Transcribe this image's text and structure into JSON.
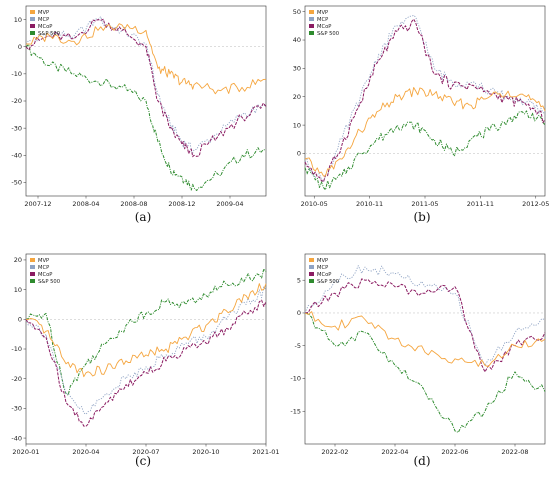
{
  "legend_entries": [
    "MVP",
    "MCP",
    "MCoP",
    "S&P 500"
  ],
  "series_colors": {
    "MVP": "#f5a640",
    "MCP": "#8fa3c4",
    "MCoP": "#8b1c62",
    "S&P 500": "#2e8b2e"
  },
  "chart_data": [
    {
      "type": "line",
      "caption": "(a)",
      "x": [
        "2007-11",
        "2008-01",
        "2008-03",
        "2008-05",
        "2008-07",
        "2008-09",
        "2008-10",
        "2008-11",
        "2008-12",
        "2009-01",
        "2009-03",
        "2009-05",
        "2009-07"
      ],
      "xticks": [
        "2007-12",
        "2008-04",
        "2008-08",
        "2008-12",
        "2009-04"
      ],
      "yticks": [
        10,
        0,
        -10,
        -20,
        -30,
        -40,
        -50
      ],
      "ylim": [
        -55,
        15
      ],
      "legend": "top-left",
      "series": [
        {
          "name": "MVP",
          "values": [
            1,
            4,
            2,
            6,
            8,
            6,
            -8,
            -10,
            -13,
            -14,
            -16,
            -15,
            -12
          ]
        },
        {
          "name": "MCP",
          "values": [
            1,
            5,
            4,
            10,
            6,
            1,
            -18,
            -28,
            -35,
            -38,
            -32,
            -25,
            -22
          ]
        },
        {
          "name": "MCoP",
          "values": [
            0,
            4,
            3,
            10,
            6,
            0,
            -20,
            -30,
            -36,
            -40,
            -33,
            -26,
            -22
          ]
        },
        {
          "name": "S&P 500",
          "values": [
            0,
            -7,
            -10,
            -13,
            -15,
            -20,
            -35,
            -45,
            -48,
            -52,
            -47,
            -40,
            -38
          ]
        }
      ]
    },
    {
      "type": "line",
      "caption": "(b)",
      "x": [
        "2010-04",
        "2010-06",
        "2010-08",
        "2010-10",
        "2010-12",
        "2011-02",
        "2011-04",
        "2011-06",
        "2011-08",
        "2011-10",
        "2011-12",
        "2012-02",
        "2012-04",
        "2012-06"
      ],
      "xticks": [
        "2010-05",
        "2010-11",
        "2011-05",
        "2011-11",
        "2012-05"
      ],
      "yticks": [
        50,
        40,
        30,
        20,
        10,
        0
      ],
      "ylim": [
        -15,
        52
      ],
      "legend": "top-left",
      "series": [
        {
          "name": "MVP",
          "values": [
            -2,
            -8,
            -2,
            8,
            15,
            20,
            22,
            21,
            18,
            17,
            20,
            22,
            20,
            15
          ]
        },
        {
          "name": "MCP",
          "values": [
            -3,
            -10,
            5,
            20,
            35,
            45,
            48,
            30,
            25,
            25,
            22,
            20,
            18,
            14
          ]
        },
        {
          "name": "MCoP",
          "values": [
            -3,
            -10,
            3,
            18,
            33,
            43,
            46,
            28,
            24,
            24,
            21,
            19,
            17,
            12
          ]
        },
        {
          "name": "S&P 500",
          "values": [
            -5,
            -12,
            -8,
            0,
            5,
            10,
            10,
            5,
            0,
            5,
            8,
            12,
            15,
            10
          ]
        }
      ]
    },
    {
      "type": "line",
      "caption": "(c)",
      "x": [
        "2020-01",
        "2020-02",
        "2020-03",
        "2020-04",
        "2020-05",
        "2020-06",
        "2020-07",
        "2020-08",
        "2020-09",
        "2020-10",
        "2020-11",
        "2020-12",
        "2021-01"
      ],
      "xticks": [
        "2020-01",
        "2020-04",
        "2020-07",
        "2020-10",
        "2021-01"
      ],
      "yticks": [
        20,
        10,
        0,
        -10,
        -20,
        -30,
        -40
      ],
      "ylim": [
        -42,
        22
      ],
      "legend": "top-left",
      "series": [
        {
          "name": "MVP",
          "values": [
            0,
            -4,
            -15,
            -18,
            -17,
            -14,
            -12,
            -10,
            -6,
            -2,
            3,
            8,
            12
          ]
        },
        {
          "name": "MCP",
          "values": [
            0,
            -5,
            -25,
            -32,
            -25,
            -20,
            -16,
            -12,
            -8,
            -6,
            0,
            5,
            10
          ]
        },
        {
          "name": "MCoP",
          "values": [
            0,
            -6,
            -28,
            -36,
            -28,
            -22,
            -18,
            -14,
            -10,
            -8,
            -3,
            2,
            6
          ]
        },
        {
          "name": "S&P 500",
          "values": [
            0,
            2,
            -25,
            -15,
            -8,
            -2,
            2,
            6,
            5,
            8,
            12,
            14,
            16
          ]
        }
      ]
    },
    {
      "type": "line",
      "caption": "(d)",
      "x": [
        "2022-01",
        "2022-02",
        "2022-03",
        "2022-04",
        "2022-05",
        "2022-06",
        "2022-07",
        "2022-08",
        "2022-09"
      ],
      "xticks": [
        "2022-02",
        "2022-04",
        "2022-06",
        "2022-08"
      ],
      "yticks": [
        5,
        0,
        -5,
        -10,
        -15
      ],
      "ylim": [
        -20,
        9
      ],
      "legend": "top-left",
      "series": [
        {
          "name": "MVP",
          "values": [
            0,
            -2,
            -1,
            -4,
            -6,
            -7,
            -8,
            -5,
            -4
          ]
        },
        {
          "name": "MCP",
          "values": [
            0,
            5,
            7,
            6,
            4,
            3,
            -8,
            -3,
            -1
          ]
        },
        {
          "name": "MCoP",
          "values": [
            0,
            3,
            5,
            4,
            3,
            4,
            -9,
            -5,
            -3
          ]
        },
        {
          "name": "S&P 500",
          "values": [
            0,
            -5,
            -3,
            -8,
            -12,
            -18,
            -15,
            -9,
            -12
          ]
        }
      ]
    }
  ]
}
